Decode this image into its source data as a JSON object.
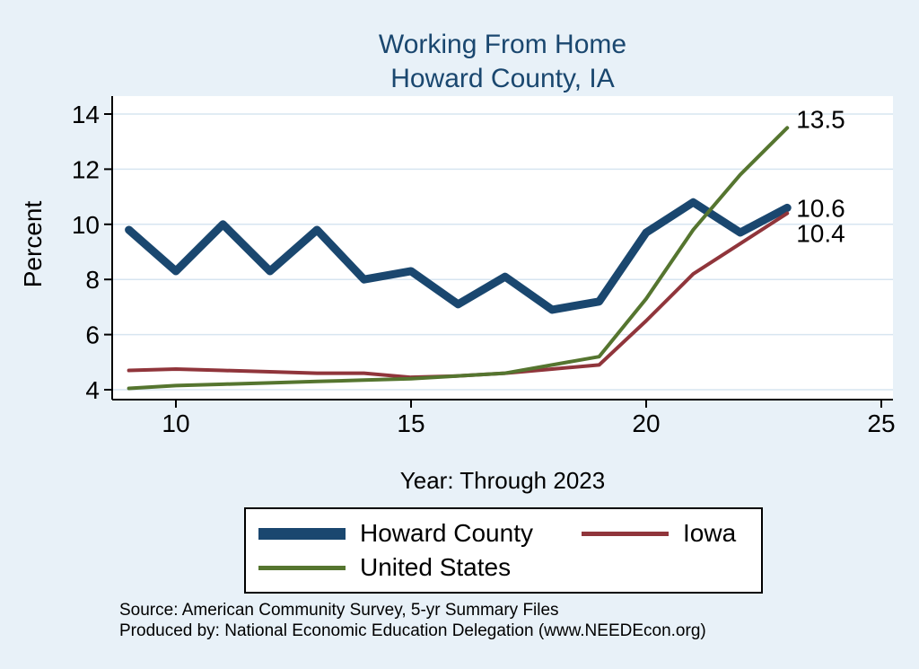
{
  "title": {
    "line1": "Working From Home",
    "line2": "Howard County, IA"
  },
  "ylabel": "Percent",
  "xlabel": "Year: Through 2023",
  "source": {
    "line1": "Source: American Community Survey, 5-yr Summary Files",
    "line2": "Produced by: National Economic Education Delegation (www.NEEDEcon.org)"
  },
  "colors": {
    "background": "#e8f1f8",
    "plot_background": "#ffffff",
    "gridline": "#d7e5f0",
    "title": "#1a476f",
    "axis": "#000000"
  },
  "chart_data": {
    "type": "line",
    "title": "Working From Home, Howard County, IA",
    "xlabel": "Year: Through 2023",
    "ylabel": "Percent",
    "x": [
      9,
      10,
      11,
      12,
      13,
      14,
      15,
      16,
      17,
      18,
      19,
      20,
      21,
      22,
      23
    ],
    "series": [
      {
        "name": "Howard County",
        "color": "#1a476f",
        "width": 9,
        "values": [
          9.8,
          8.3,
          10.0,
          8.3,
          9.8,
          8.0,
          8.3,
          7.1,
          8.1,
          6.9,
          7.2,
          9.7,
          10.8,
          9.7,
          10.6
        ],
        "end_label": "10.6",
        "label_dy": 0
      },
      {
        "name": "Iowa",
        "color": "#90353b",
        "width": 4,
        "values": [
          4.7,
          4.75,
          4.7,
          4.65,
          4.6,
          4.6,
          4.45,
          4.5,
          4.6,
          4.75,
          4.9,
          6.5,
          8.2,
          9.3,
          10.4
        ],
        "end_label": "10.4",
        "label_dy": 22
      },
      {
        "name": "United States",
        "color": "#55752f",
        "width": 4,
        "values": [
          4.05,
          4.15,
          4.2,
          4.25,
          4.3,
          4.35,
          4.4,
          4.5,
          4.6,
          4.9,
          5.2,
          7.3,
          9.8,
          11.8,
          13.5
        ],
        "end_label": "13.5",
        "label_dy": -10
      }
    ],
    "x_ticks": [
      10,
      15,
      20,
      25
    ],
    "y_ticks": [
      4,
      6,
      8,
      10,
      12,
      14
    ],
    "xlim": [
      9,
      25.2
    ],
    "ylim": [
      4,
      14
    ],
    "grid": true,
    "legend_position": "bottom"
  }
}
